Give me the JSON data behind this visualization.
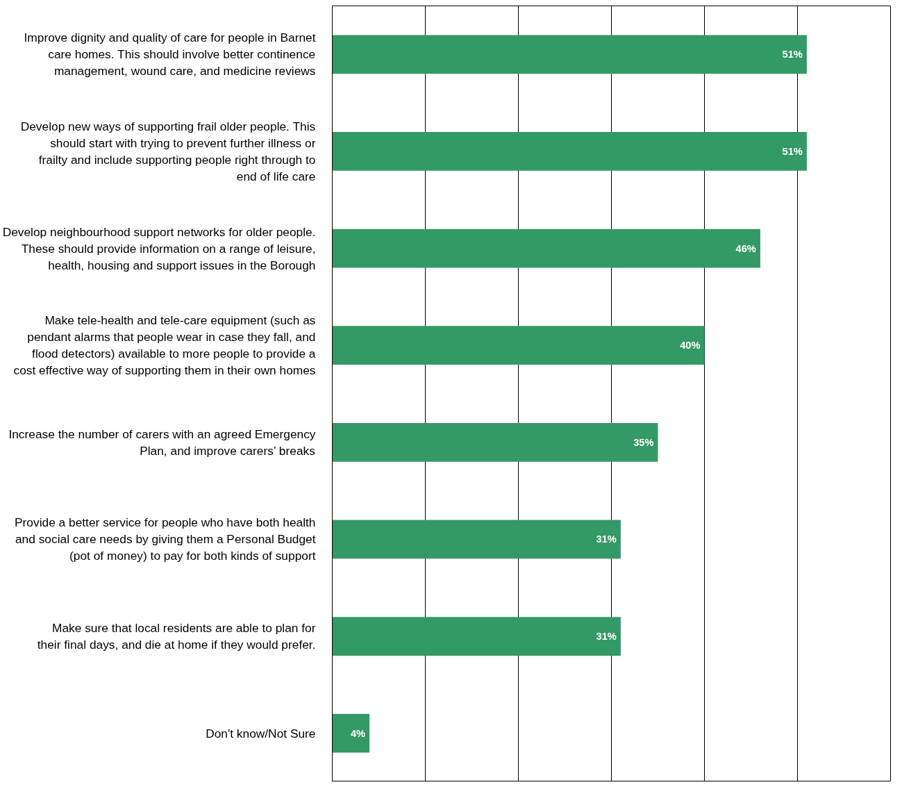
{
  "chart_data": {
    "type": "bar",
    "orientation": "horizontal",
    "categories": [
      "Improve dignity and quality of care for people in Barnet care homes. This should involve better continence management, wound care, and medicine reviews",
      "Develop new ways of supporting frail older people. This should start with trying to prevent further illness or frailty and include supporting people right through to end of life care",
      "Develop neighbourhood support networks for older people. These should provide information on a range of leisure, health, housing and support issues in the Borough",
      "Make tele-health and tele-care equipment (such as pendant alarms that people wear in case they fall, and flood detectors) available to more people to provide a cost effective way of supporting them in their own homes",
      "Increase the number of carers with an agreed Emergency Plan, and improve carers’ breaks",
      "Provide a better service for people who have both health and social care needs by giving them a Personal Budget (pot of money) to pay for both kinds of support",
      "Make sure that local residents are able to plan for their final days, and die at home if they would prefer.",
      "Don't know/Not Sure"
    ],
    "values": [
      51,
      51,
      46,
      40,
      35,
      31,
      31,
      4
    ],
    "value_labels": [
      "51%",
      "51%",
      "46%",
      "40%",
      "35%",
      "31%",
      "31%",
      "4%"
    ],
    "color": "#339966",
    "xlim": [
      0,
      60
    ],
    "xticks": [
      {
        "value": 0,
        "label": null
      },
      {
        "value": 10,
        "label": null
      },
      {
        "value": 20,
        "label": null
      },
      {
        "value": 30,
        "label": null
      },
      {
        "value": 40,
        "label": null
      },
      {
        "value": 50,
        "label": null
      },
      {
        "value": 60,
        "label": null
      }
    ],
    "tick_labels": "y",
    "grid": "x"
  }
}
